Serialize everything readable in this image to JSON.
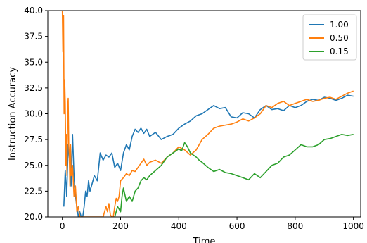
{
  "chart_data": {
    "type": "line",
    "title": "",
    "xlabel": "Time",
    "ylabel": "Instruction Accuracy",
    "xlim": [
      -50,
      1025
    ],
    "ylim": [
      20.0,
      40.0
    ],
    "xticks": [
      0,
      200,
      400,
      600,
      800,
      1000
    ],
    "xtick_labels": [
      "0",
      "200",
      "400",
      "600",
      "800",
      "1000"
    ],
    "yticks": [
      20.0,
      22.5,
      25.0,
      27.5,
      30.0,
      32.5,
      35.0,
      37.5,
      40.0
    ],
    "ytick_labels": [
      "20.0",
      "22.5",
      "25.0",
      "27.5",
      "30.0",
      "32.5",
      "35.0",
      "37.5",
      "40.0"
    ],
    "grid": false,
    "legend_position": "top-right",
    "series": [
      {
        "name": "1.00",
        "color": "#1f77b4",
        "x": [
          5,
          10,
          15,
          20,
          25,
          30,
          35,
          40,
          45,
          50,
          55,
          60,
          65,
          70,
          75,
          80,
          85,
          90,
          95,
          100,
          110,
          120,
          130,
          140,
          150,
          160,
          170,
          180,
          190,
          200,
          210,
          220,
          230,
          240,
          250,
          260,
          270,
          280,
          290,
          300,
          320,
          340,
          360,
          380,
          400,
          420,
          440,
          460,
          480,
          500,
          520,
          540,
          560,
          580,
          600,
          620,
          640,
          660,
          680,
          700,
          720,
          740,
          760,
          780,
          800,
          820,
          840,
          860,
          880,
          900,
          920,
          940,
          960,
          980,
          1000
        ],
        "y": [
          21.0,
          24.5,
          22.0,
          27.0,
          25.5,
          23.0,
          28.0,
          24.0,
          22.0,
          21.0,
          20.0,
          20.5,
          20.0,
          20.0,
          21.0,
          22.5,
          22.0,
          23.5,
          22.5,
          23.0,
          24.0,
          23.5,
          26.2,
          25.5,
          26.0,
          25.8,
          26.2,
          24.8,
          25.2,
          24.5,
          26.2,
          27.0,
          26.5,
          27.8,
          28.5,
          28.2,
          28.6,
          28.1,
          28.5,
          27.8,
          28.2,
          27.5,
          27.8,
          28.0,
          28.6,
          29.0,
          29.3,
          29.8,
          30.0,
          30.4,
          30.8,
          30.5,
          30.6,
          29.7,
          29.6,
          30.1,
          30.0,
          29.6,
          30.4,
          30.8,
          30.4,
          30.5,
          30.3,
          30.8,
          30.6,
          30.8,
          31.2,
          31.4,
          31.3,
          31.6,
          31.5,
          31.3,
          31.5,
          31.8,
          31.7
        ]
      },
      {
        "name": "0.50",
        "color": "#ff7f0e",
        "x": [
          0,
          2,
          4,
          6,
          8,
          10,
          12,
          14,
          16,
          18,
          20,
          22,
          24,
          26,
          28,
          30,
          35,
          40,
          45,
          50,
          55,
          60,
          65,
          140,
          145,
          150,
          155,
          160,
          165,
          170,
          175,
          180,
          185,
          190,
          195,
          200,
          210,
          220,
          230,
          240,
          250,
          260,
          270,
          280,
          290,
          300,
          320,
          340,
          360,
          380,
          400,
          420,
          440,
          460,
          480,
          500,
          520,
          540,
          560,
          580,
          600,
          620,
          640,
          660,
          680,
          700,
          720,
          740,
          760,
          780,
          800,
          820,
          840,
          860,
          880,
          900,
          920,
          940,
          960,
          980,
          1000
        ],
        "y": [
          40.0,
          36.0,
          39.5,
          30.0,
          33.3,
          31.0,
          25.0,
          28.0,
          24.0,
          30.0,
          31.5,
          27.0,
          26.0,
          23.0,
          27.0,
          24.0,
          25.0,
          22.0,
          23.0,
          20.5,
          21.0,
          20.0,
          20.0,
          20.0,
          20.5,
          21.0,
          20.5,
          21.3,
          20.2,
          20.0,
          20.0,
          21.0,
          21.8,
          21.5,
          22.0,
          23.5,
          23.8,
          24.2,
          24.0,
          24.5,
          24.4,
          24.8,
          25.2,
          25.6,
          25.0,
          25.3,
          25.5,
          25.2,
          25.8,
          26.2,
          26.8,
          26.5,
          26.0,
          26.5,
          27.5,
          28.0,
          28.6,
          28.8,
          28.9,
          29.0,
          29.2,
          29.5,
          29.3,
          29.6,
          30.0,
          30.8,
          30.6,
          31.0,
          31.2,
          30.8,
          31.0,
          31.2,
          31.4,
          31.2,
          31.3,
          31.5,
          31.6,
          31.4,
          31.7,
          32.0,
          32.2
        ]
      },
      {
        "name": "0.15",
        "color": "#2ca02c",
        "x": [
          180,
          190,
          200,
          205,
          210,
          220,
          230,
          240,
          250,
          260,
          270,
          280,
          290,
          300,
          320,
          340,
          360,
          380,
          400,
          410,
          420,
          430,
          440,
          450,
          460,
          470,
          480,
          500,
          520,
          540,
          560,
          580,
          600,
          620,
          640,
          660,
          680,
          700,
          720,
          740,
          760,
          780,
          800,
          820,
          840,
          860,
          880,
          900,
          920,
          940,
          960,
          980,
          1000
        ],
        "y": [
          20.0,
          21.0,
          20.5,
          22.0,
          22.8,
          21.5,
          22.0,
          21.5,
          22.5,
          22.8,
          23.5,
          23.8,
          23.6,
          24.0,
          24.5,
          25.0,
          25.8,
          26.2,
          26.6,
          26.4,
          27.2,
          26.8,
          26.2,
          26.0,
          25.8,
          25.5,
          25.3,
          24.8,
          24.4,
          24.6,
          24.3,
          24.2,
          24.0,
          23.8,
          23.6,
          24.2,
          23.8,
          24.4,
          25.0,
          25.2,
          25.8,
          26.0,
          26.5,
          27.0,
          26.8,
          26.8,
          27.0,
          27.5,
          27.6,
          27.8,
          28.0,
          27.9,
          28.0
        ]
      }
    ]
  }
}
